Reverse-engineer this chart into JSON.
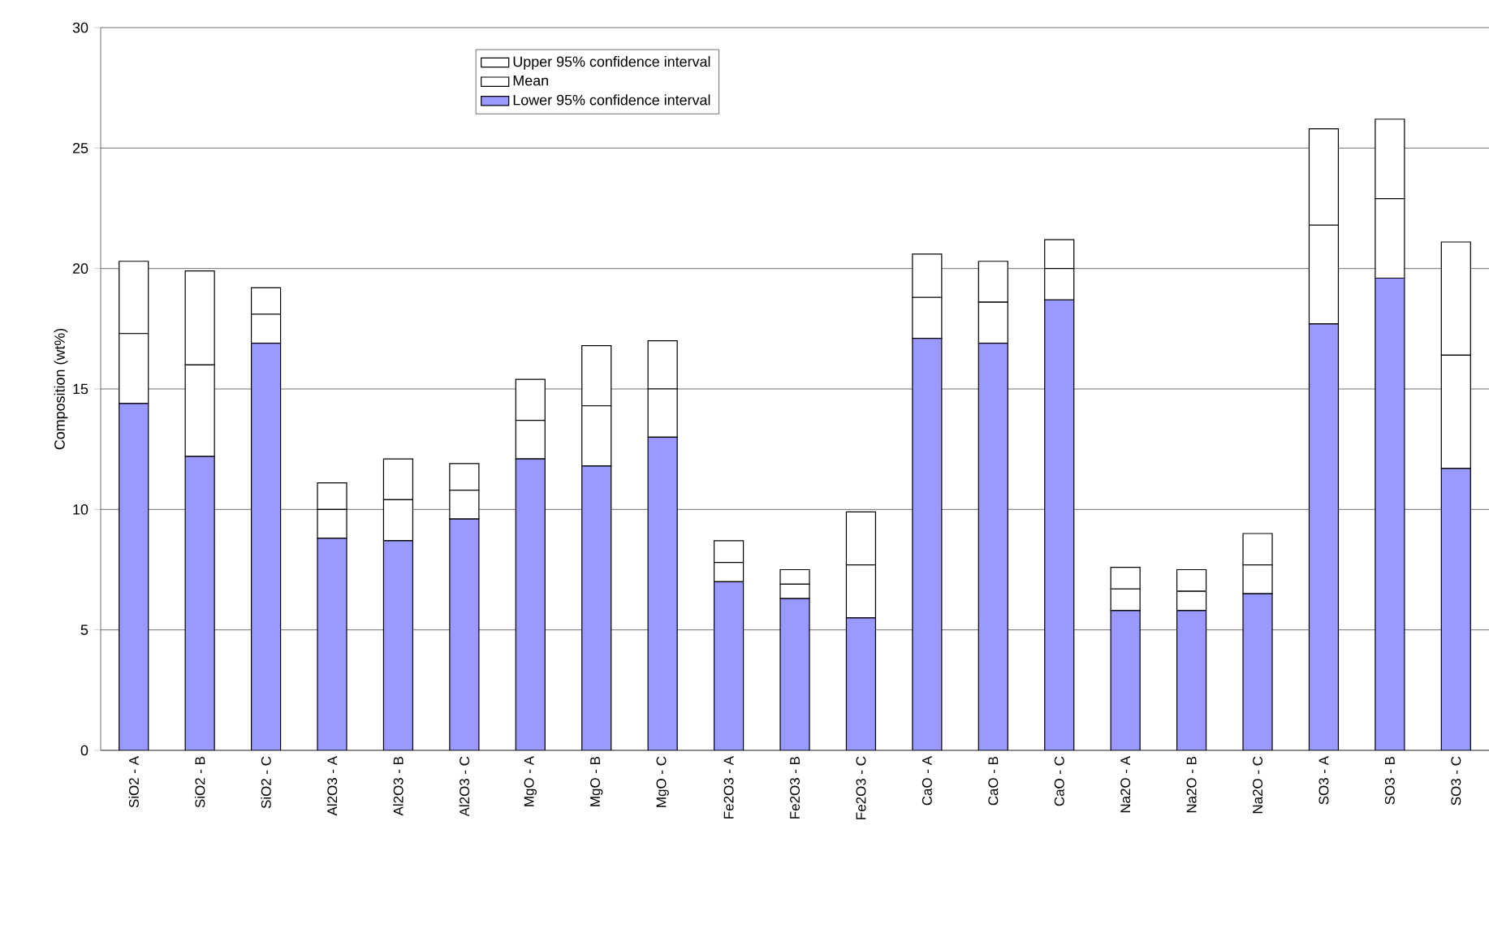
{
  "chart_data": {
    "type": "bar",
    "stacked": true,
    "ylabel": "Composition (wt%)",
    "categories": [
      "SiO2 - A",
      "SiO2 - B",
      "SiO2 - C",
      "Al2O3 - A",
      "Al2O3 - B",
      "Al2O3 - C",
      "MgO - A",
      "MgO - B",
      "MgO - C",
      "Fe2O3 - A",
      "Fe2O3 - B",
      "Fe2O3 - C",
      "CaO - A",
      "CaO - B",
      "CaO - C",
      "Na2O - A",
      "Na2O - B",
      "Na2O - C",
      "SO3 - A",
      "SO3 - B",
      "SO3 - C"
    ],
    "series": [
      {
        "name": "Lower 95% confidence interval",
        "color": "#9999ff",
        "values": [
          14.4,
          12.2,
          16.9,
          8.8,
          8.7,
          9.6,
          12.1,
          11.8,
          13.0,
          7.0,
          6.3,
          5.5,
          17.1,
          16.9,
          18.7,
          5.8,
          5.8,
          6.5,
          17.7,
          19.6,
          11.7
        ]
      },
      {
        "name": "Mean",
        "color": "#ffffff",
        "values": [
          2.9,
          3.8,
          1.2,
          1.2,
          1.7,
          1.2,
          1.6,
          2.5,
          2.0,
          0.8,
          0.6,
          2.2,
          1.7,
          1.7,
          1.3,
          0.9,
          0.8,
          1.2,
          4.1,
          3.3,
          4.7
        ]
      },
      {
        "name": "Upper 95% confidence interval",
        "color": "#ffffff",
        "values": [
          3.0,
          3.9,
          1.1,
          1.1,
          1.7,
          1.1,
          1.7,
          2.5,
          2.0,
          0.9,
          0.6,
          2.2,
          1.8,
          1.7,
          1.2,
          0.9,
          0.9,
          1.3,
          4.0,
          3.3,
          4.7
        ]
      }
    ],
    "ylim": [
      0,
      30
    ],
    "yticks": [
      0,
      5,
      10,
      15,
      20,
      25,
      30
    ],
    "grid": "y",
    "legend": "top"
  }
}
